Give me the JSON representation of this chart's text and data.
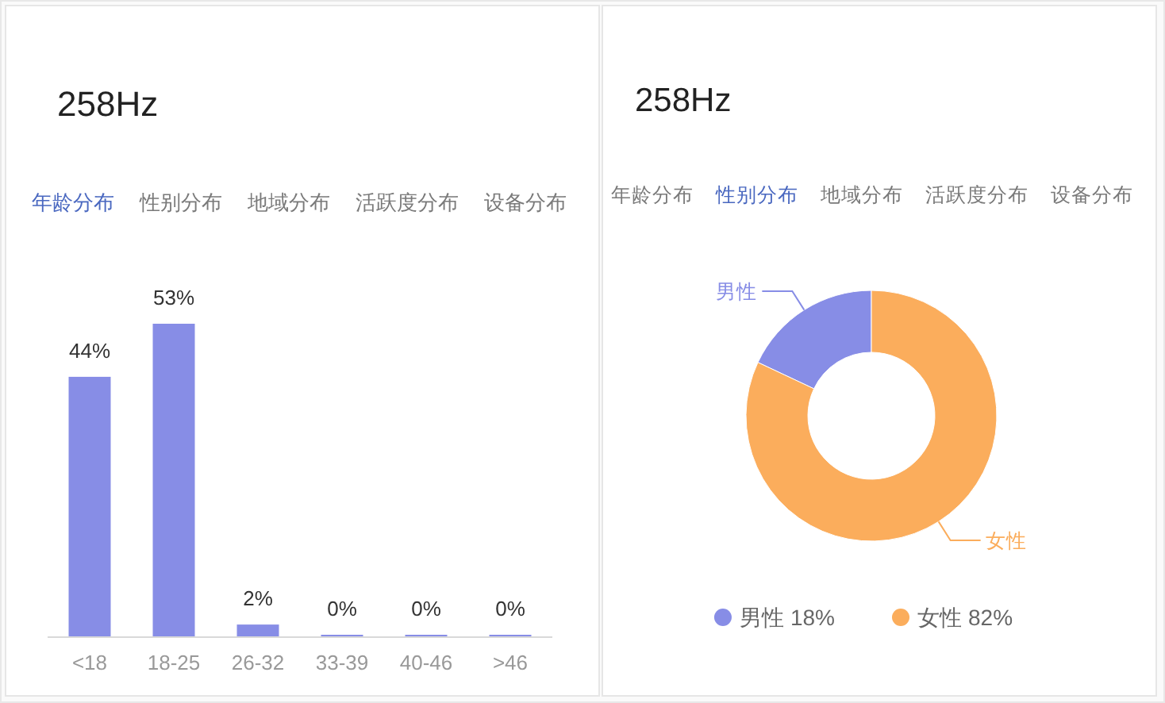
{
  "chart_data": [
    {
      "type": "bar",
      "title": "258Hz",
      "annotations": [
        "年龄分布",
        "性别分布",
        "地域分布",
        "活跃度分布",
        "设备分布"
      ],
      "categories": [
        "<18",
        "18-25",
        "26-32",
        "33-39",
        "40-46",
        ">46"
      ],
      "values": [
        44,
        53,
        2,
        0,
        0,
        0
      ],
      "color": "#878de6",
      "value_labels": [
        "44%",
        "53%",
        "2%",
        "0%",
        "0%",
        "0%"
      ]
    },
    {
      "type": "donut",
      "title": "258Hz",
      "annotations": [
        "年龄分布",
        "性别分布",
        "地域分布",
        "活跃度分布",
        "设备分布"
      ],
      "categories": [
        "男性",
        "女性"
      ],
      "values": [
        18,
        82
      ],
      "colors": [
        "#878de6",
        "#fbad5c"
      ],
      "value_labels": [
        "18%",
        "82%"
      ],
      "legend": "bottom"
    }
  ]
}
